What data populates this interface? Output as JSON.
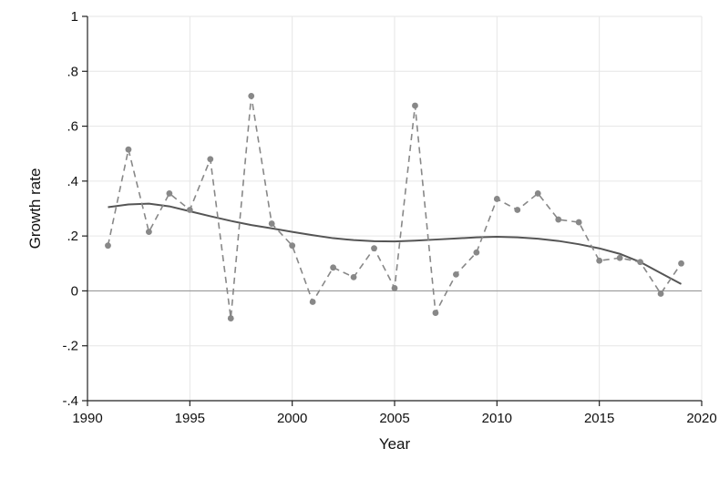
{
  "chart_data": {
    "type": "line",
    "xlabel": "Year",
    "ylabel": "Growth rate",
    "xlim": [
      1990,
      2020
    ],
    "ylim": [
      -0.4,
      1
    ],
    "x_ticks": [
      1990,
      1995,
      2000,
      2005,
      2010,
      2015,
      2020
    ],
    "x_tick_labels": [
      "1990",
      "1995",
      "2000",
      "2005",
      "2010",
      "2015",
      "2020"
    ],
    "y_ticks": [
      -0.4,
      -0.2,
      0,
      0.2,
      0.4,
      0.6,
      0.8,
      1
    ],
    "y_tick_labels": [
      "-.4",
      "-.2",
      "0",
      ".2",
      ".4",
      ".6",
      ".8",
      "1"
    ],
    "grid": true,
    "reference_line_y": 0,
    "colors": {
      "observed": "#888888",
      "fitted": "#555555",
      "grid": "#e6e6e6",
      "axis": "#222222",
      "reference": "#999999"
    },
    "series": [
      {
        "style": "dashed-markers",
        "x": [
          1991,
          1992,
          1993,
          1994,
          1995,
          1996,
          1997,
          1998,
          1999,
          2000,
          2001,
          2002,
          2003,
          2004,
          2005,
          2006,
          2007,
          2008,
          2009,
          2010,
          2011,
          2012,
          2013,
          2014,
          2015,
          2016,
          2017,
          2018,
          2019
        ],
        "y": [
          0.165,
          0.515,
          0.215,
          0.355,
          0.295,
          0.48,
          -0.1,
          0.71,
          0.245,
          0.165,
          -0.04,
          0.085,
          0.05,
          0.155,
          0.01,
          0.675,
          -0.08,
          0.06,
          0.14,
          0.335,
          0.295,
          0.355,
          0.26,
          0.25,
          0.11,
          0.12,
          0.105,
          -0.01,
          0.1
        ]
      },
      {
        "style": "solid-smooth",
        "x": [
          1991,
          1992,
          1993,
          1994,
          1995,
          1996,
          1997,
          1998,
          1999,
          2000,
          2001,
          2002,
          2003,
          2004,
          2005,
          2006,
          2007,
          2008,
          2009,
          2010,
          2011,
          2012,
          2013,
          2014,
          2015,
          2016,
          2017,
          2018,
          2019
        ],
        "y": [
          0.305,
          0.315,
          0.318,
          0.308,
          0.29,
          0.272,
          0.255,
          0.24,
          0.228,
          0.215,
          0.203,
          0.192,
          0.185,
          0.181,
          0.18,
          0.183,
          0.187,
          0.191,
          0.195,
          0.197,
          0.195,
          0.19,
          0.182,
          0.17,
          0.155,
          0.135,
          0.105,
          0.065,
          0.025
        ]
      }
    ]
  }
}
